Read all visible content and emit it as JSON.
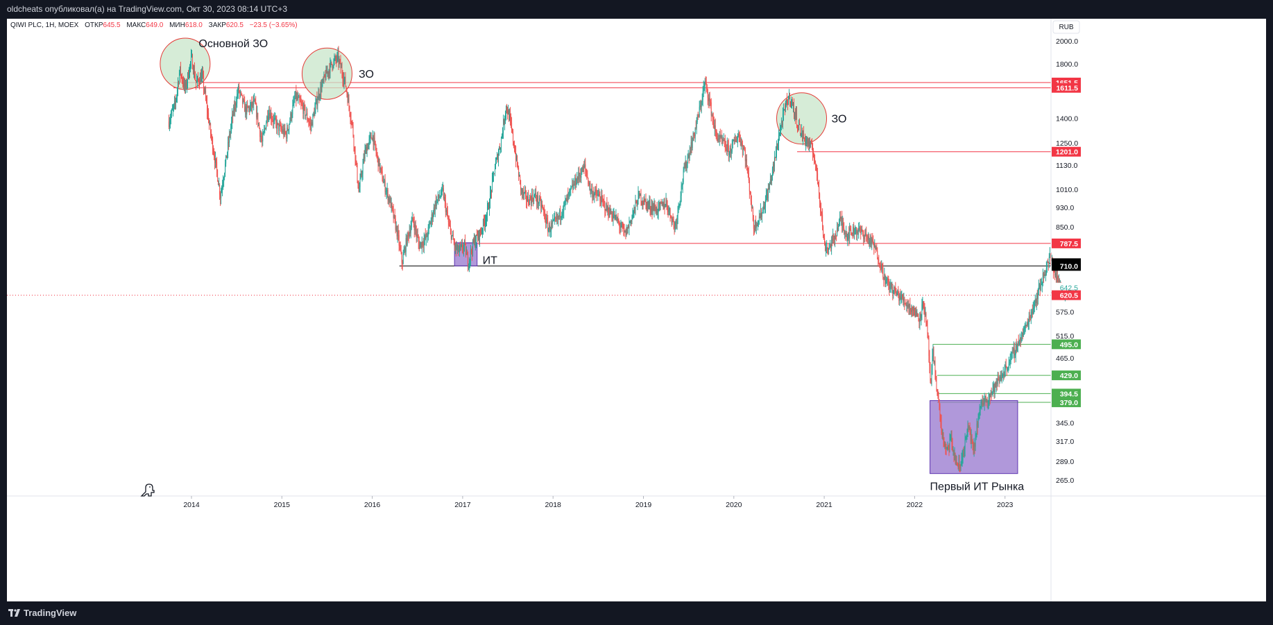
{
  "header": {
    "publish_line": "oldcheats опубликовал(а) на TradingView.com, Окт 30, 2023 08:14 UTC+3"
  },
  "legend": {
    "symbol": "QIWI PLC, 1Н, MOEX",
    "open_label": "ОТКР",
    "open_value": "645.5",
    "high_label": "МАКС",
    "high_value": "649.0",
    "low_label": "МИН",
    "low_value": "618.0",
    "close_label": "ЗАКР",
    "close_value": "620.5",
    "change": "−23.5 (−3.65%)"
  },
  "currency": "RUB",
  "footer": {
    "brand": "TradingView"
  },
  "colors": {
    "up": "#26a69a",
    "down": "#ef5350",
    "red_line": "#f23645",
    "green_line": "#4caf50",
    "zone_circle": "#c8e6c9",
    "it_box": "#9575cd"
  },
  "chart_data": {
    "type": "candlestick",
    "price_scale": "log",
    "ylim": [
      245,
      2200
    ],
    "xlim": [
      "2012-12",
      "2023-10"
    ],
    "y_ticks": [
      2000.0,
      1800.0,
      1400.0,
      1250.0,
      1130.0,
      1010.0,
      930.0,
      850.0,
      575.0,
      515.0,
      465.0,
      345.0,
      317.0,
      289.0,
      265.0
    ],
    "x_ticks": [
      {
        "label": "2014",
        "t": 2014.0
      },
      {
        "label": "2015",
        "t": 2015.0
      },
      {
        "label": "2016",
        "t": 2016.0
      },
      {
        "label": "2017",
        "t": 2017.0
      },
      {
        "label": "2018",
        "t": 2018.0
      },
      {
        "label": "2019",
        "t": 2019.0
      },
      {
        "label": "2020",
        "t": 2020.0
      },
      {
        "label": "2021",
        "t": 2021.0
      },
      {
        "label": "2022",
        "t": 2022.0
      },
      {
        "label": "2023",
        "t": 2023.0
      }
    ],
    "price_path": [
      [
        2013.75,
        1380
      ],
      [
        2013.82,
        1500
      ],
      [
        2013.87,
        1750
      ],
      [
        2013.93,
        1600
      ],
      [
        2014.0,
        1850
      ],
      [
        2014.05,
        1650
      ],
      [
        2014.12,
        1700
      ],
      [
        2014.2,
        1350
      ],
      [
        2014.28,
        1100
      ],
      [
        2014.32,
        980
      ],
      [
        2014.38,
        1150
      ],
      [
        2014.45,
        1400
      ],
      [
        2014.52,
        1600
      ],
      [
        2014.6,
        1450
      ],
      [
        2014.7,
        1500
      ],
      [
        2014.78,
        1250
      ],
      [
        2014.85,
        1450
      ],
      [
        2014.95,
        1350
      ],
      [
        2015.05,
        1300
      ],
      [
        2015.15,
        1550
      ],
      [
        2015.25,
        1450
      ],
      [
        2015.32,
        1350
      ],
      [
        2015.4,
        1550
      ],
      [
        2015.48,
        1700
      ],
      [
        2015.55,
        1800
      ],
      [
        2015.62,
        1850
      ],
      [
        2015.7,
        1650
      ],
      [
        2015.78,
        1350
      ],
      [
        2015.85,
        1000
      ],
      [
        2015.92,
        1200
      ],
      [
        2016.0,
        1300
      ],
      [
        2016.05,
        1180
      ],
      [
        2016.12,
        1050
      ],
      [
        2016.2,
        950
      ],
      [
        2016.28,
        820
      ],
      [
        2016.33,
        720
      ],
      [
        2016.38,
        800
      ],
      [
        2016.45,
        880
      ],
      [
        2016.52,
        780
      ],
      [
        2016.6,
        810
      ],
      [
        2016.7,
        950
      ],
      [
        2016.78,
        1000
      ],
      [
        2016.85,
        850
      ],
      [
        2016.92,
        770
      ],
      [
        2016.96,
        760
      ],
      [
        2017.02,
        780
      ],
      [
        2017.06,
        720
      ],
      [
        2017.12,
        790
      ],
      [
        2017.2,
        830
      ],
      [
        2017.28,
        920
      ],
      [
        2017.35,
        1100
      ],
      [
        2017.42,
        1250
      ],
      [
        2017.48,
        1480
      ],
      [
        2017.52,
        1400
      ],
      [
        2017.58,
        1200
      ],
      [
        2017.65,
        1000
      ],
      [
        2017.72,
        960
      ],
      [
        2017.8,
        980
      ],
      [
        2017.88,
        930
      ],
      [
        2017.95,
        840
      ],
      [
        2018.05,
        880
      ],
      [
        2018.15,
        960
      ],
      [
        2018.25,
        1050
      ],
      [
        2018.35,
        1120
      ],
      [
        2018.42,
        1000
      ],
      [
        2018.5,
        980
      ],
      [
        2018.6,
        920
      ],
      [
        2018.7,
        880
      ],
      [
        2018.8,
        820
      ],
      [
        2018.88,
        900
      ],
      [
        2018.95,
        980
      ],
      [
        2019.05,
        940
      ],
      [
        2019.15,
        920
      ],
      [
        2019.25,
        950
      ],
      [
        2019.35,
        850
      ],
      [
        2019.45,
        1100
      ],
      [
        2019.55,
        1280
      ],
      [
        2019.62,
        1450
      ],
      [
        2019.68,
        1650
      ],
      [
        2019.72,
        1550
      ],
      [
        2019.8,
        1300
      ],
      [
        2019.88,
        1250
      ],
      [
        2019.95,
        1200
      ],
      [
        2020.05,
        1300
      ],
      [
        2020.12,
        1200
      ],
      [
        2020.18,
        1000
      ],
      [
        2020.22,
        850
      ],
      [
        2020.3,
        900
      ],
      [
        2020.38,
        1000
      ],
      [
        2020.45,
        1150
      ],
      [
        2020.5,
        1300
      ],
      [
        2020.58,
        1500
      ],
      [
        2020.62,
        1550
      ],
      [
        2020.68,
        1420
      ],
      [
        2020.75,
        1300
      ],
      [
        2020.82,
        1250
      ],
      [
        2020.88,
        1200
      ],
      [
        2020.93,
        1050
      ],
      [
        2020.97,
        900
      ],
      [
        2021.0,
        780
      ],
      [
        2021.05,
        770
      ],
      [
        2021.1,
        800
      ],
      [
        2021.18,
        880
      ],
      [
        2021.25,
        820
      ],
      [
        2021.35,
        840
      ],
      [
        2021.45,
        820
      ],
      [
        2021.55,
        780
      ],
      [
        2021.62,
        720
      ],
      [
        2021.68,
        660
      ],
      [
        2021.75,
        640
      ],
      [
        2021.82,
        620
      ],
      [
        2021.9,
        600
      ],
      [
        2021.98,
        580
      ],
      [
        2022.05,
        560
      ],
      [
        2022.1,
        600
      ],
      [
        2022.15,
        500
      ],
      [
        2022.18,
        400
      ],
      [
        2022.2,
        480
      ],
      [
        2022.25,
        400
      ],
      [
        2022.3,
        330
      ],
      [
        2022.35,
        300
      ],
      [
        2022.4,
        320
      ],
      [
        2022.45,
        290
      ],
      [
        2022.5,
        280
      ],
      [
        2022.55,
        310
      ],
      [
        2022.6,
        340
      ],
      [
        2022.65,
        300
      ],
      [
        2022.7,
        350
      ],
      [
        2022.75,
        380
      ],
      [
        2022.82,
        390
      ],
      [
        2022.9,
        410
      ],
      [
        2023.0,
        440
      ],
      [
        2023.08,
        470
      ],
      [
        2023.15,
        500
      ],
      [
        2023.22,
        530
      ],
      [
        2023.3,
        580
      ],
      [
        2023.38,
        640
      ],
      [
        2023.45,
        700
      ],
      [
        2023.5,
        740
      ],
      [
        2023.55,
        690
      ],
      [
        2023.6,
        650
      ],
      [
        2023.65,
        630
      ],
      [
        2023.7,
        620
      ]
    ],
    "levels": [
      {
        "price": 1651.5,
        "label": "1651.5",
        "color": "#f23645",
        "x_start": 2013.8
      },
      {
        "price": 1611.5,
        "label": "1611.5",
        "color": "#f23645",
        "x_start": 2013.8
      },
      {
        "price": 1201.0,
        "label": "1201.0",
        "color": "#f23645",
        "x_start": 2020.7
      },
      {
        "price": 787.5,
        "label": "787.5",
        "color": "#f23645",
        "x_start": 2016.9
      },
      {
        "price": 719.0,
        "label": "719.0",
        "color": "#000000",
        "x_start": 2023.48
      },
      {
        "price": 710.0,
        "label": "710.0",
        "color": "#000000",
        "x_start": 2016.3
      },
      {
        "price": 627.5,
        "label": "627.5",
        "color": "#f23645",
        "x_start": 2023.6
      },
      {
        "price": 495.0,
        "label": "495.0",
        "color": "#4caf50",
        "x_start": 2022.2
      },
      {
        "price": 429.0,
        "label": "429.0",
        "color": "#4caf50",
        "x_start": 2022.25
      },
      {
        "price": 394.5,
        "label": "394.5",
        "color": "#4caf50",
        "x_start": 2022.25
      },
      {
        "price": 379.0,
        "label": "379.0",
        "color": "#4caf50",
        "x_start": 2022.25
      }
    ],
    "last_price": {
      "price": 620.5,
      "label": "620.5",
      "color": "#f23645"
    },
    "extra_label": {
      "price": 642.5,
      "label": "642.5",
      "color": "#26a69a"
    },
    "zones": [
      {
        "type": "circle",
        "label": "Основной ЗО",
        "t": 2013.93,
        "price": 1800,
        "label_t": 2014.08,
        "label_price": 1980
      },
      {
        "type": "circle",
        "label": "ЗО",
        "t": 2015.5,
        "price": 1720,
        "label_t": 2015.85,
        "label_price": 1720
      },
      {
        "type": "circle",
        "label": "ЗО",
        "t": 2020.75,
        "price": 1400,
        "label_t": 2021.08,
        "label_price": 1400
      },
      {
        "type": "rect",
        "label": "ИТ",
        "t0": 2016.91,
        "t1": 2017.16,
        "p0": 710,
        "p1": 790,
        "label_t": 2017.22,
        "label_price": 730
      },
      {
        "type": "rect",
        "label": "Первый ИТ Рынка",
        "t0": 2022.17,
        "t1": 2023.14,
        "p0": 273,
        "p1": 382,
        "label_t": 2022.17,
        "label_price": 258
      }
    ]
  }
}
